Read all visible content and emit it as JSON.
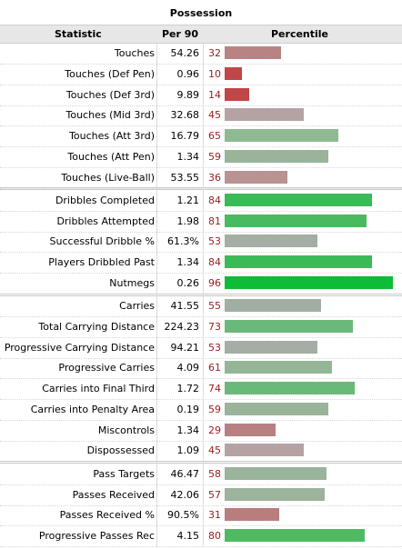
{
  "table": {
    "title": "Possession",
    "columns": {
      "statistic": "Statistic",
      "per90": "Per 90",
      "percentile": "Percentile"
    }
  },
  "chart_data": {
    "type": "bar",
    "title": "Possession",
    "xlabel": "Percentile",
    "xlim": [
      0,
      100
    ],
    "rows": [
      {
        "stat": "Touches",
        "per90": "54.26",
        "pct": 32,
        "color": "#b98384",
        "group": 0
      },
      {
        "stat": "Touches (Def Pen)",
        "per90": "0.96",
        "pct": 10,
        "color": "#bf4747",
        "group": 0
      },
      {
        "stat": "Touches (Def 3rd)",
        "per90": "9.89",
        "pct": 14,
        "color": "#bf4747",
        "group": 0
      },
      {
        "stat": "Touches (Mid 3rd)",
        "per90": "32.68",
        "pct": 45,
        "color": "#b5a3a4",
        "group": 0
      },
      {
        "stat": "Touches (Att 3rd)",
        "per90": "16.79",
        "pct": 65,
        "color": "#8fba91",
        "group": 0
      },
      {
        "stat": "Touches (Att Pen)",
        "per90": "1.34",
        "pct": 59,
        "color": "#99b49b",
        "group": 0
      },
      {
        "stat": "Touches (Live-Ball)",
        "per90": "53.55",
        "pct": 36,
        "color": "#b99292",
        "group": 0
      },
      {
        "stat": "Dribbles Completed",
        "per90": "1.21",
        "pct": 84,
        "color": "#3bbb57",
        "group": 1
      },
      {
        "stat": "Dribbles Attempted",
        "per90": "1.98",
        "pct": 81,
        "color": "#48bb60",
        "group": 1
      },
      {
        "stat": "Successful Dribble %",
        "per90": "61.3%",
        "pct": 53,
        "color": "#a4aea4",
        "group": 1
      },
      {
        "stat": "Players Dribbled Past",
        "per90": "1.34",
        "pct": 84,
        "color": "#3bbb57",
        "group": 1
      },
      {
        "stat": "Nutmegs",
        "per90": "0.26",
        "pct": 96,
        "color": "#0dbc37",
        "group": 1
      },
      {
        "stat": "Carries",
        "per90": "41.55",
        "pct": 55,
        "color": "#a0afa1",
        "group": 2
      },
      {
        "stat": "Total Carrying Distance",
        "per90": "224.23",
        "pct": 73,
        "color": "#6bb97a",
        "group": 2
      },
      {
        "stat": "Progressive Carrying Distance",
        "per90": "94.21",
        "pct": 53,
        "color": "#a4aea4",
        "group": 2
      },
      {
        "stat": "Progressive Carries",
        "per90": "4.09",
        "pct": 61,
        "color": "#95b597",
        "group": 2
      },
      {
        "stat": "Carries into Final Third",
        "per90": "1.72",
        "pct": 74,
        "color": "#6ab978",
        "group": 2
      },
      {
        "stat": "Carries into Penalty Area",
        "per90": "0.19",
        "pct": 59,
        "color": "#99b49b",
        "group": 2
      },
      {
        "stat": "Miscontrols",
        "per90": "1.34",
        "pct": 29,
        "color": "#b98081",
        "group": 2
      },
      {
        "stat": "Dispossessed",
        "per90": "1.09",
        "pct": 45,
        "color": "#b5a3a4",
        "group": 2
      },
      {
        "stat": "Pass Targets",
        "per90": "46.47",
        "pct": 58,
        "color": "#99b49b",
        "group": 3
      },
      {
        "stat": "Passes Received",
        "per90": "42.06",
        "pct": 57,
        "color": "#9cb39d",
        "group": 3
      },
      {
        "stat": "Passes Received %",
        "per90": "90.5%",
        "pct": 31,
        "color": "#b97d7e",
        "group": 3
      },
      {
        "stat": "Progressive Passes Rec",
        "per90": "4.15",
        "pct": 80,
        "color": "#4ebb63",
        "group": 3
      }
    ]
  }
}
